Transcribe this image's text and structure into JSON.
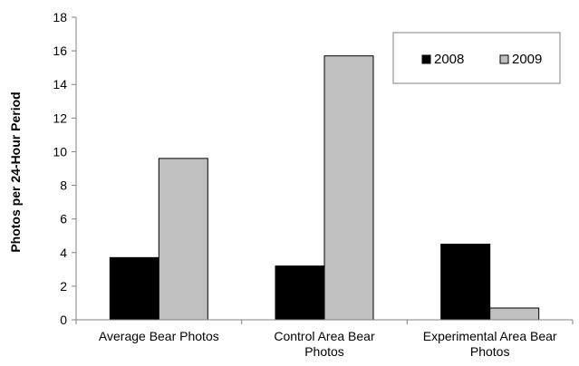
{
  "chart_data": {
    "type": "bar",
    "categories": [
      [
        "Average Bear Photos"
      ],
      [
        "Control Area Bear",
        "Photos"
      ],
      [
        "Experimental Area Bear",
        "Photos"
      ]
    ],
    "series": [
      {
        "name": "2008",
        "values": [
          3.7,
          3.2,
          4.5
        ],
        "color": "#000000"
      },
      {
        "name": "2009",
        "values": [
          9.6,
          15.7,
          0.7
        ],
        "color": "#c0c0c0"
      }
    ],
    "title": "",
    "xlabel": "",
    "ylabel": "Photos per 24-Hour Period",
    "ylim": [
      0,
      18
    ],
    "yticks": [
      0,
      2,
      4,
      6,
      8,
      10,
      12,
      14,
      16,
      18
    ],
    "grid": false,
    "legend_position": "top-right"
  }
}
